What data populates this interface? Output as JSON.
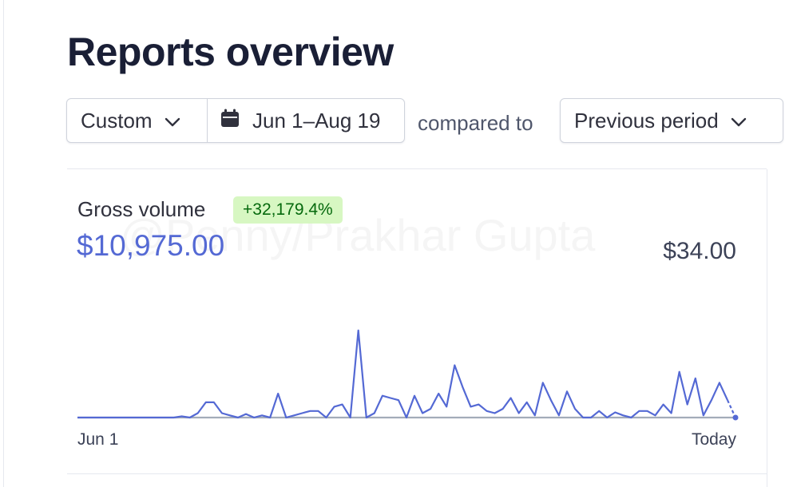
{
  "page": {
    "title": "Reports overview"
  },
  "filters": {
    "range_label": "Custom",
    "date_range": "Jun 1–Aug 19",
    "compared_to_label": "compared to",
    "comparison_label": "Previous period"
  },
  "metric": {
    "label": "Gross volume",
    "change_badge": "+32,179.4%",
    "current_value": "$10,975.00",
    "previous_value": "$34.00",
    "watermark": "@Penny/Prakhar Gupta"
  },
  "colors": {
    "accent": "#5469d4",
    "badge_bg": "#d7f7c2",
    "badge_text": "#05690d",
    "previous_series": "#a3acb9"
  },
  "icons": {
    "range_dropdown": "chevron-down-icon",
    "date_picker": "calendar-icon",
    "comparison_dropdown": "chevron-down-icon"
  },
  "chart_data": {
    "type": "line",
    "title": "",
    "xlabel": "",
    "ylabel": "",
    "x_tick_labels": [
      "Jun 1",
      "Today"
    ],
    "series": [
      {
        "values": [
          0,
          0,
          0,
          0,
          0,
          0,
          0,
          0,
          0,
          0,
          0,
          0,
          0,
          3,
          0,
          10,
          35,
          35,
          10,
          5,
          0,
          8,
          0,
          5,
          0,
          55,
          0,
          5,
          10,
          15,
          15,
          0,
          25,
          30,
          0,
          200,
          0,
          10,
          50,
          45,
          40,
          0,
          50,
          10,
          20,
          55,
          25,
          120,
          70,
          25,
          30,
          15,
          10,
          20,
          45,
          10,
          35,
          5,
          80,
          40,
          5,
          60,
          20,
          0,
          0,
          15,
          0,
          12,
          5,
          0,
          15,
          15,
          5,
          30,
          10,
          105,
          30,
          90,
          5,
          40,
          80,
          40,
          0
        ]
      },
      {
        "values": [
          0,
          0,
          0,
          0,
          0,
          0,
          0,
          0,
          0,
          0,
          0,
          0,
          0,
          0,
          0,
          0,
          0,
          0,
          0,
          0,
          0,
          0,
          0,
          0,
          0,
          0,
          0,
          0,
          0,
          0,
          0,
          0,
          0,
          0,
          0,
          0,
          0,
          0,
          0,
          0,
          0,
          0,
          0,
          0,
          0,
          0,
          0,
          0,
          0,
          0,
          0,
          0,
          0,
          0,
          0,
          0,
          0,
          0,
          0,
          0,
          0,
          0,
          0,
          0,
          0,
          0,
          0,
          0,
          0,
          0,
          0,
          0,
          0,
          0,
          0,
          0,
          0,
          0,
          0,
          0,
          0,
          0,
          0
        ]
      }
    ],
    "ylim": [
      0,
      220
    ],
    "grid": false,
    "legend": "none"
  }
}
